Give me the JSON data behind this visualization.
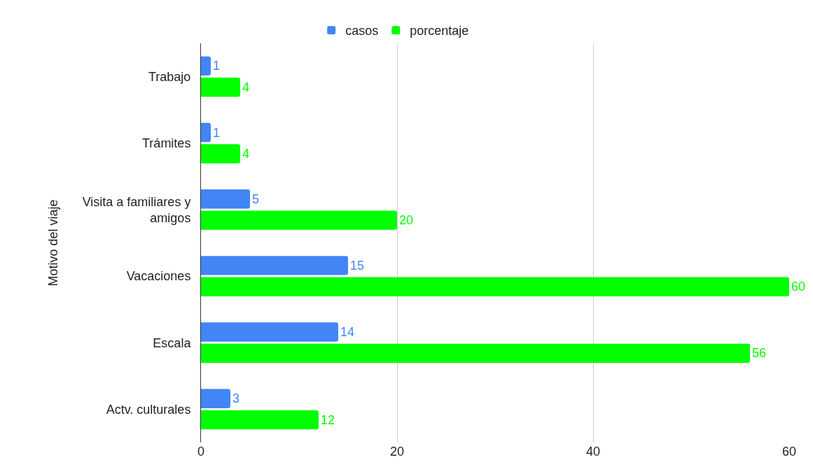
{
  "chart_data": {
    "type": "bar",
    "orientation": "horizontal",
    "ylabel": "Motivo del viaje",
    "categories": [
      "Trabajo",
      "Trámites",
      "Visita a familiares y amigos",
      "Vacaciones",
      "Escala",
      "Actv. culturales"
    ],
    "series": [
      {
        "name": "casos",
        "color": "#4285f4",
        "values": [
          1,
          1,
          5,
          15,
          14,
          3
        ]
      },
      {
        "name": "porcentaje",
        "color": "#00ff00",
        "values": [
          4,
          4,
          20,
          60,
          56,
          12
        ]
      }
    ],
    "xlim": [
      0,
      60
    ],
    "xticks": [
      0,
      20,
      40,
      60
    ],
    "grid": "x",
    "legend": "top",
    "data_labels": true
  }
}
